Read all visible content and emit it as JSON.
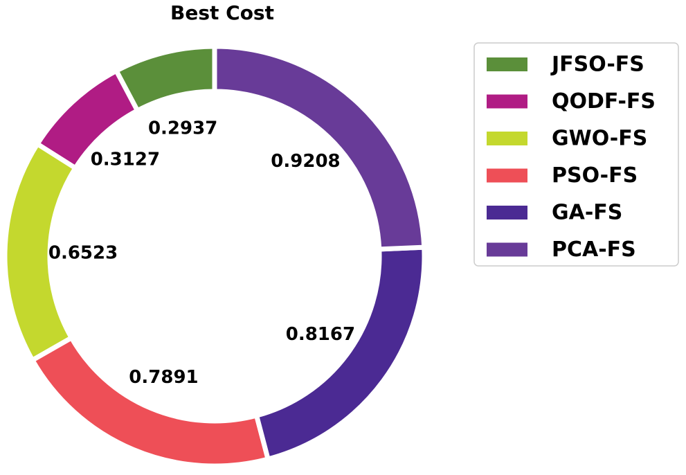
{
  "chart_data": {
    "type": "pie",
    "variant": "donut",
    "title": "Best Cost",
    "categories": [
      "JFSO-FS",
      "QODF-FS",
      "GWO-FS",
      "PSO-FS",
      "GA-FS",
      "PCA-FS"
    ],
    "values": [
      0.2937,
      0.3127,
      0.6523,
      0.7891,
      0.8167,
      0.9208
    ],
    "labels": [
      "0.2937",
      "0.3127",
      "0.6523",
      "0.7891",
      "0.8167",
      "0.9208"
    ],
    "colors": [
      "#5b8f3a",
      "#b01c84",
      "#c4d82e",
      "#ee4f57",
      "#4b2a93",
      "#683b98"
    ],
    "legend_position": "right",
    "start_angle_deg": 90,
    "direction": "counterclockwise"
  }
}
